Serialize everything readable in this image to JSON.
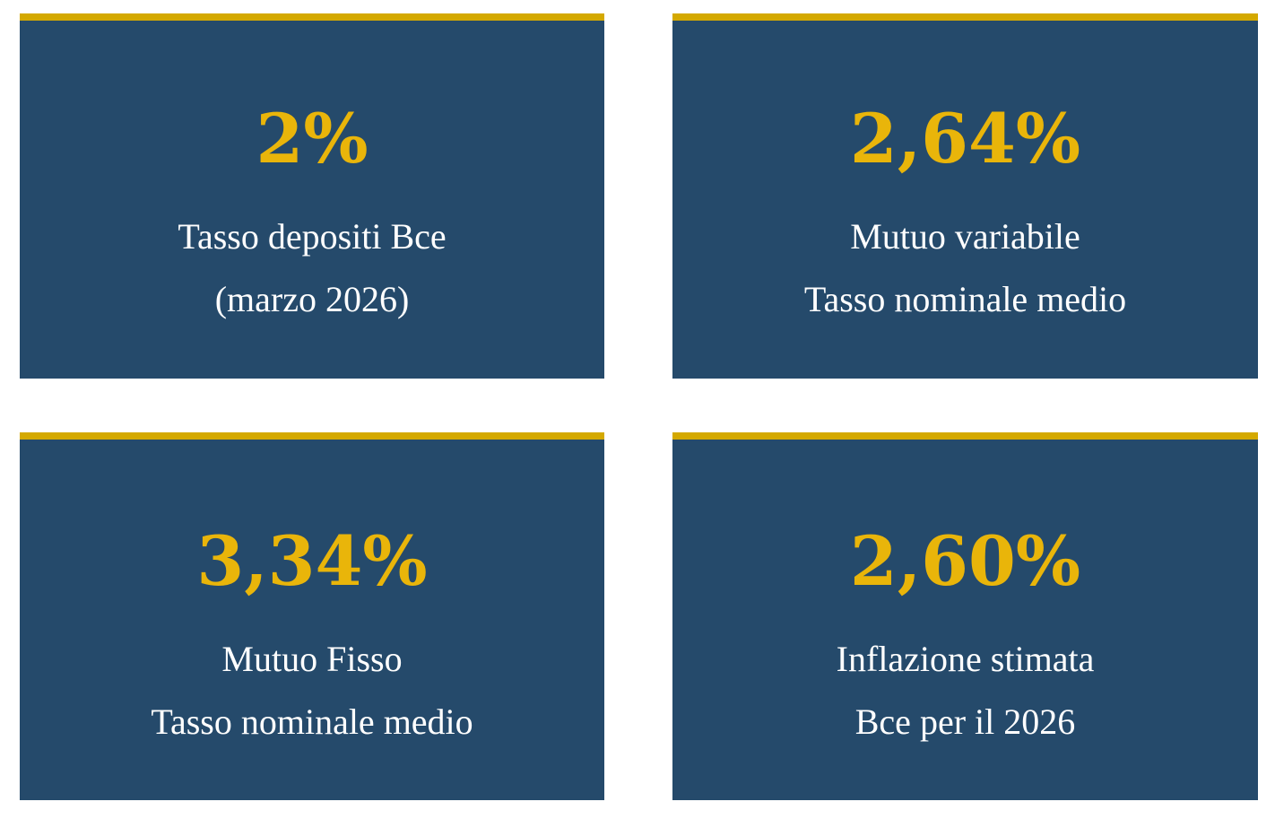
{
  "cards": [
    {
      "value": "2%",
      "lines": [
        "Tasso depositi Bce",
        "(marzo 2026)"
      ]
    },
    {
      "value": "2,64%",
      "lines": [
        "Mutuo variabile",
        "Tasso nominale medio"
      ]
    },
    {
      "value": "3,34%",
      "lines": [
        "Mutuo Fisso",
        "Tasso nominale medio"
      ]
    },
    {
      "value": "2,60%",
      "lines": [
        "Inflazione stimata",
        "Bce per il 2026"
      ]
    }
  ]
}
